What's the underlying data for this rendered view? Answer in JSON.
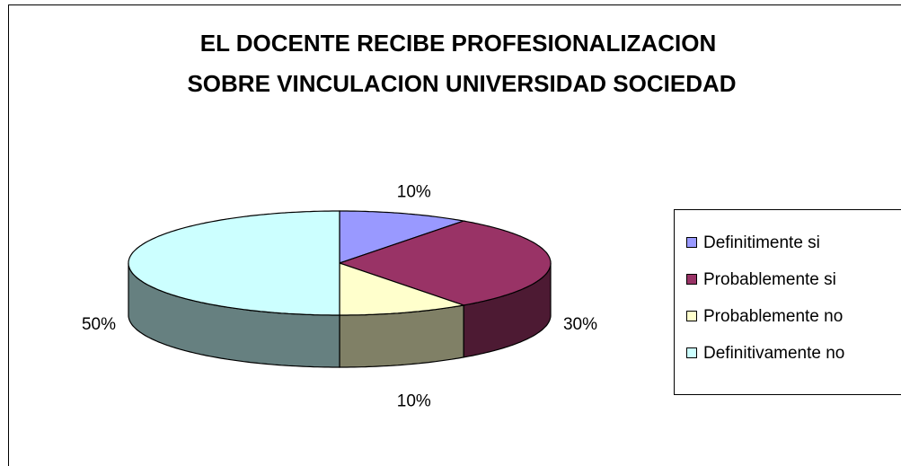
{
  "chart_data": {
    "type": "pie3d",
    "title": [
      "EL DOCENTE RECIBE PROFESIONALIZACION",
      "SOBRE VINCULACION UNIVERSIDAD SOCIEDAD"
    ],
    "categories": [
      "Definitimente si",
      "Probablemente si",
      "Probablemente no",
      "Definitivamente no"
    ],
    "values": [
      10,
      30,
      10,
      50
    ],
    "value_labels": [
      "10%",
      "30%",
      "10%",
      "50%"
    ],
    "colors": [
      "#9999ff",
      "#993366",
      "#ffffcc",
      "#ccffff"
    ],
    "legend": "right"
  }
}
